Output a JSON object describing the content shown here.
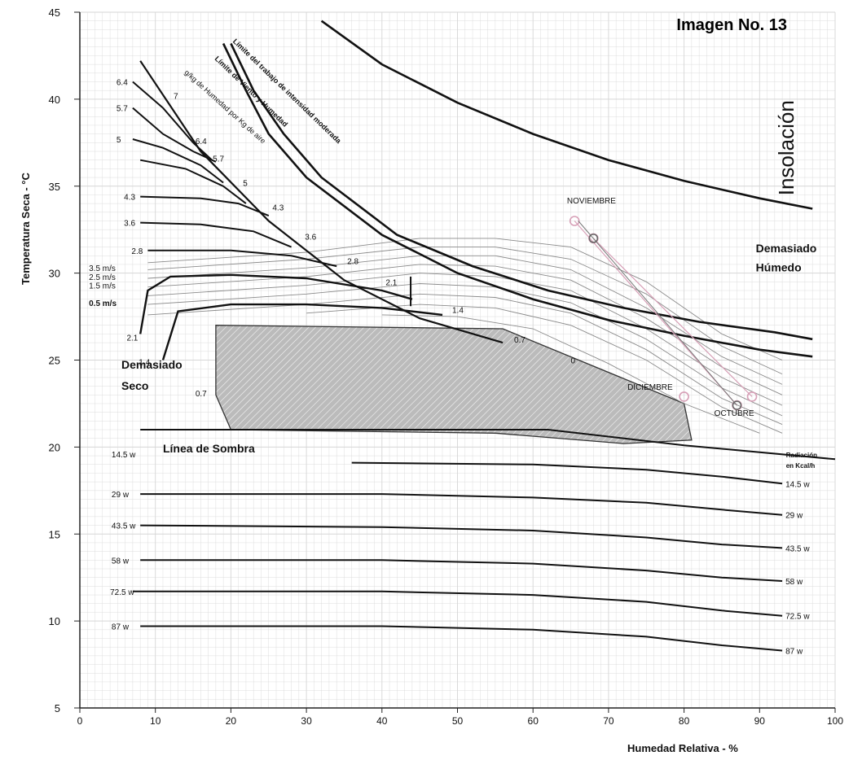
{
  "chart_data": {
    "type": "line",
    "title": "Imagen No. 13",
    "xlabel": "Humedad Relativa - %",
    "ylabel": "Temperatura Seca - °C",
    "xlim": [
      0,
      100
    ],
    "ylim": [
      5,
      45
    ],
    "grid": true,
    "x_ticks": [
      "0",
      "10",
      "20",
      "30",
      "40",
      "50",
      "60",
      "70",
      "80",
      "90",
      "100"
    ],
    "y_ticks": [
      "5",
      "10",
      "15",
      "20",
      "25",
      "30",
      "35",
      "40",
      "45"
    ],
    "zone_labels": {
      "insolacion": "Insolación",
      "demasiado_humedo_1": "Demasiado",
      "demasiado_humedo_2": "Húmedo",
      "demasiado_seco_1": "Demasiado",
      "demasiado_seco_2": "Seco",
      "linea_sombra": "Línea de Sombra",
      "limite_trabajo": "Límite del trabajo de intensidad moderada",
      "limite_viento": "Límite de Viento y Humedad",
      "humedad_axis": "g/kg de Humedad por Kg de aire",
      "radiacion_1": "Radiación",
      "radiacion_2": "en Kcal/h"
    },
    "comfort_zone": [
      [
        18,
        27
      ],
      [
        56,
        26.8
      ],
      [
        80,
        22.5
      ],
      [
        81,
        20.4
      ],
      [
        72,
        20.2
      ],
      [
        55,
        20.8
      ],
      [
        20,
        21
      ],
      [
        18,
        23
      ]
    ],
    "shading_line": [
      [
        8,
        21
      ],
      [
        62,
        21
      ],
      [
        80,
        20.1
      ],
      [
        100,
        19.3
      ]
    ],
    "boundary_curves": [
      {
        "name": "upper",
        "points": [
          [
            32,
            44.5
          ],
          [
            40,
            42
          ],
          [
            50,
            39.8
          ],
          [
            60,
            38
          ],
          [
            70,
            36.5
          ],
          [
            80,
            35.3
          ],
          [
            90,
            34.3
          ],
          [
            97,
            33.7
          ]
        ]
      },
      {
        "name": "limit_moderate",
        "points": [
          [
            19,
            43.2
          ],
          [
            22,
            40.5
          ],
          [
            25,
            38
          ],
          [
            30,
            35.5
          ],
          [
            40,
            32.2
          ],
          [
            50,
            30
          ],
          [
            60,
            28.5
          ],
          [
            70,
            27.3
          ],
          [
            80,
            26.4
          ],
          [
            90,
            25.6
          ],
          [
            97,
            25.2
          ]
        ]
      },
      {
        "name": "limit_wind",
        "points": [
          [
            20,
            43.2
          ],
          [
            23,
            40.5
          ],
          [
            27,
            38
          ],
          [
            32,
            35.5
          ],
          [
            42,
            32.2
          ],
          [
            52,
            30.4
          ],
          [
            62,
            29
          ],
          [
            72,
            28
          ],
          [
            82,
            27.2
          ],
          [
            92,
            26.6
          ],
          [
            97,
            26.2
          ]
        ]
      }
    ],
    "humidity_line": [
      [
        8,
        42.2
      ],
      [
        16,
        37
      ],
      [
        25,
        33
      ],
      [
        35,
        29.6
      ],
      [
        45,
        27.4
      ],
      [
        56,
        26
      ]
    ],
    "humidity_labels": [
      "7",
      "6.4",
      "5.7",
      "5",
      "4.3",
      "3.6",
      "2.8",
      "2.1",
      "1.4",
      "0.7"
    ],
    "moisture_curves": [
      {
        "label": "6.4",
        "points": [
          [
            7,
            41
          ],
          [
            11,
            39.5
          ],
          [
            15,
            37.5
          ],
          [
            17.5,
            36.5
          ]
        ]
      },
      {
        "label": "5.7",
        "points": [
          [
            7,
            39.5
          ],
          [
            11,
            38
          ],
          [
            15,
            37
          ],
          [
            18,
            36.4
          ]
        ]
      },
      {
        "label": "5",
        "points": [
          [
            7,
            37.7
          ],
          [
            11,
            37.2
          ],
          [
            16,
            36.2
          ],
          [
            19,
            35.2
          ]
        ]
      },
      {
        "label": "",
        "points": [
          [
            8,
            36.5
          ],
          [
            14,
            36
          ],
          [
            19,
            35
          ],
          [
            22,
            34
          ]
        ]
      },
      {
        "label": "4.3",
        "points": [
          [
            8,
            34.4
          ],
          [
            16,
            34.3
          ],
          [
            21,
            34
          ],
          [
            25,
            33.3
          ]
        ]
      },
      {
        "label": "3.6",
        "points": [
          [
            8,
            32.9
          ],
          [
            16,
            32.8
          ],
          [
            23,
            32.4
          ],
          [
            28,
            31.5
          ]
        ]
      },
      {
        "label": "2.8",
        "points": [
          [
            9,
            31.3
          ],
          [
            20,
            31.3
          ],
          [
            28,
            31
          ],
          [
            34,
            30.4
          ]
        ]
      }
    ],
    "wind_speeds": [
      "3.5 m/s",
      "2.5 m/s",
      "1.5 m/s",
      "0.5 m/s"
    ],
    "wind_curves": [
      {
        "label": "2.1",
        "points": [
          [
            8,
            26.5
          ],
          [
            9,
            29
          ],
          [
            12,
            29.8
          ],
          [
            20,
            29.9
          ],
          [
            30,
            29.7
          ],
          [
            40,
            29
          ],
          [
            44,
            28.5
          ]
        ]
      },
      {
        "label": "1.4",
        "points": [
          [
            11,
            25
          ],
          [
            13,
            27.8
          ],
          [
            20,
            28.2
          ],
          [
            30,
            28.2
          ],
          [
            40,
            28
          ],
          [
            48,
            27.6
          ]
        ]
      }
    ],
    "comfort_curve_labels": [
      "2.1",
      "1.4",
      "0.7",
      "0"
    ],
    "wind_lines": [
      {
        "points": [
          [
            9,
            30.6
          ],
          [
            30,
            31.2
          ],
          [
            45,
            32
          ],
          [
            55,
            32
          ],
          [
            65,
            31.5
          ],
          [
            75,
            29.5
          ],
          [
            85,
            26.5
          ],
          [
            93,
            25
          ]
        ]
      },
      {
        "points": [
          [
            9,
            30.2
          ],
          [
            30,
            30.8
          ],
          [
            45,
            31.5
          ],
          [
            55,
            31.5
          ],
          [
            65,
            30.8
          ],
          [
            75,
            28.8
          ],
          [
            85,
            25.8
          ],
          [
            93,
            24.2
          ]
        ]
      },
      {
        "points": [
          [
            9,
            29.7
          ],
          [
            30,
            30.3
          ],
          [
            45,
            31
          ],
          [
            55,
            31
          ],
          [
            65,
            30.2
          ],
          [
            75,
            28
          ],
          [
            85,
            25.2
          ],
          [
            93,
            23.6
          ]
        ]
      },
      {
        "points": [
          [
            9,
            29.2
          ],
          [
            30,
            29.8
          ],
          [
            45,
            30.5
          ],
          [
            55,
            30.4
          ],
          [
            65,
            29.6
          ],
          [
            75,
            27.4
          ],
          [
            85,
            24.6
          ],
          [
            93,
            23
          ]
        ]
      },
      {
        "points": [
          [
            9,
            28.7
          ],
          [
            30,
            29.3
          ],
          [
            45,
            30
          ],
          [
            55,
            29.8
          ],
          [
            65,
            29
          ],
          [
            75,
            26.8
          ],
          [
            85,
            24
          ],
          [
            93,
            22.4
          ]
        ]
      },
      {
        "points": [
          [
            9,
            28.2
          ],
          [
            30,
            28.8
          ],
          [
            45,
            29.4
          ],
          [
            55,
            29.2
          ],
          [
            65,
            28.3
          ],
          [
            75,
            26.2
          ],
          [
            85,
            23.4
          ],
          [
            93,
            21.8
          ]
        ]
      },
      {
        "points": [
          [
            9,
            27.6
          ],
          [
            30,
            28.2
          ],
          [
            45,
            28.8
          ],
          [
            55,
            28.6
          ],
          [
            65,
            27.7
          ],
          [
            75,
            25.6
          ],
          [
            85,
            22.8
          ],
          [
            93,
            21.3
          ]
        ]
      },
      {
        "points": [
          [
            30,
            27.7
          ],
          [
            45,
            28.2
          ],
          [
            55,
            28
          ],
          [
            65,
            27
          ],
          [
            75,
            25
          ],
          [
            85,
            22.3
          ],
          [
            93,
            20.8
          ]
        ]
      },
      {
        "points": [
          [
            40,
            27.6
          ],
          [
            50,
            27.5
          ],
          [
            60,
            26.8
          ],
          [
            70,
            24.8
          ],
          [
            80,
            22.5
          ],
          [
            90,
            20.8
          ]
        ]
      }
    ],
    "radiation_curves": [
      {
        "label": "14.5 w",
        "points": [
          [
            36,
            19.1
          ],
          [
            60,
            19
          ],
          [
            75,
            18.7
          ],
          [
            85,
            18.3
          ],
          [
            93,
            17.9
          ]
        ]
      },
      {
        "label": "29 w",
        "points": [
          [
            8,
            17.3
          ],
          [
            40,
            17.3
          ],
          [
            60,
            17.1
          ],
          [
            75,
            16.8
          ],
          [
            85,
            16.4
          ],
          [
            93,
            16.1
          ]
        ]
      },
      {
        "label": "43.5 w",
        "points": [
          [
            8,
            15.5
          ],
          [
            40,
            15.4
          ],
          [
            60,
            15.2
          ],
          [
            75,
            14.8
          ],
          [
            85,
            14.4
          ],
          [
            93,
            14.2
          ]
        ]
      },
      {
        "label": "58 w",
        "points": [
          [
            8,
            13.5
          ],
          [
            40,
            13.5
          ],
          [
            60,
            13.3
          ],
          [
            75,
            12.9
          ],
          [
            85,
            12.5
          ],
          [
            93,
            12.3
          ]
        ]
      },
      {
        "label": "72.5 w",
        "points": [
          [
            7,
            11.7
          ],
          [
            40,
            11.7
          ],
          [
            60,
            11.5
          ],
          [
            75,
            11.1
          ],
          [
            85,
            10.6
          ],
          [
            93,
            10.3
          ]
        ]
      },
      {
        "label": "87 w",
        "points": [
          [
            8,
            9.7
          ],
          [
            40,
            9.7
          ],
          [
            60,
            9.5
          ],
          [
            75,
            9.1
          ],
          [
            85,
            8.6
          ],
          [
            93,
            8.3
          ]
        ]
      }
    ],
    "radiation_left_labels": [
      "14.5 w",
      "29 w",
      "43.5 w",
      "58 w",
      "72.5 w",
      "87 w"
    ],
    "months": [
      {
        "name": "NOVIEMBRE",
        "x": 65.5,
        "y": 33
      },
      {
        "name": "NOVIEMBRE",
        "x": 68,
        "y": 32
      },
      {
        "name": "DICIEMBRE",
        "x": 80,
        "y": 22.9
      },
      {
        "name": "OCTUBRE",
        "x": 87,
        "y": 22.4
      },
      {
        "name": "OCTUBRE",
        "x": 89,
        "y": 22.9
      }
    ],
    "month_labels": [
      "NOVIEMBRE",
      "DICIEMBRE",
      "OCTUBRE"
    ]
  },
  "colors": {
    "grid": "#d6d6d6",
    "axis": "#222222",
    "curve": "#111111",
    "thin_curve": "#8a8a8a",
    "comfort_fill": "#bbbbbb",
    "month_marker": "#d7a0b7"
  }
}
